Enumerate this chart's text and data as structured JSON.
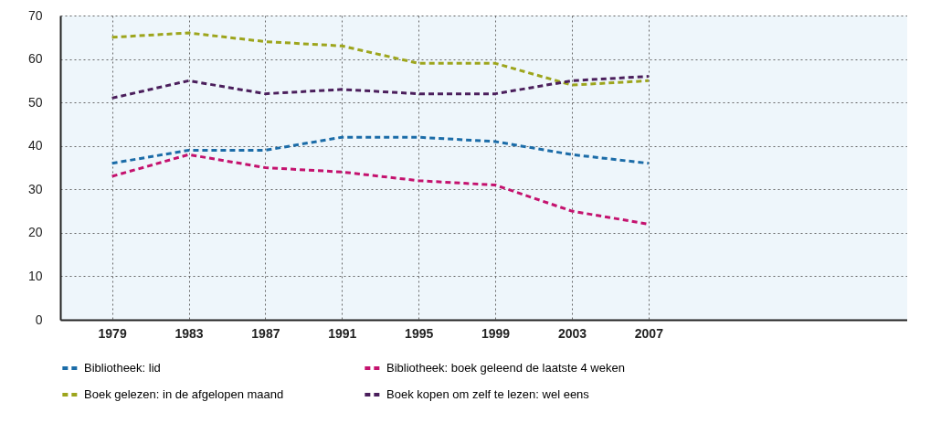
{
  "chart_data": {
    "type": "line",
    "x": [
      1979,
      1983,
      1987,
      1991,
      1995,
      1999,
      2003,
      2007
    ],
    "xlim": [
      1976.3,
      2020.5
    ],
    "xticks": [
      1979,
      1983,
      1987,
      1991,
      1995,
      1999,
      2003,
      2007
    ],
    "ylim": [
      0,
      70
    ],
    "yticks": [
      0,
      10,
      20,
      30,
      40,
      50,
      60,
      70
    ],
    "grid": true,
    "legend": "bottom",
    "line_style": "dashed",
    "series": [
      {
        "name": "Bibliotheek: lid",
        "color": "#1b6ca8",
        "values": [
          36,
          39,
          39,
          42,
          42,
          41,
          38,
          36
        ]
      },
      {
        "name": "Bibliotheek: boek geleend de laatste 4 weken",
        "color": "#c4126e",
        "values": [
          33,
          38,
          35,
          34,
          32,
          31,
          25,
          22
        ]
      },
      {
        "name": "Boek gelezen: in de afgelopen maand",
        "color": "#9da51c",
        "values": [
          65,
          66,
          64,
          63,
          59,
          59,
          54,
          55
        ]
      },
      {
        "name": "Boek kopen om zelf te lezen: wel eens",
        "color": "#4b1f5c",
        "values": [
          51,
          55,
          52,
          53,
          52,
          52,
          55,
          56
        ]
      }
    ]
  }
}
